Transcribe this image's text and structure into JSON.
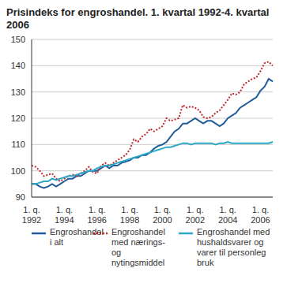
{
  "chart_data": {
    "type": "line",
    "title": "Prisindeks for engroshandel. 1. kvartal 1992-4. kvartal 2006",
    "categories": [
      "1. q. 1992",
      null,
      null,
      null,
      null,
      null,
      null,
      null,
      "1. q. 1994",
      null,
      null,
      null,
      null,
      null,
      null,
      null,
      "1. q. 1996",
      null,
      null,
      null,
      null,
      null,
      null,
      null,
      "1. q. 1998",
      null,
      null,
      null,
      null,
      null,
      null,
      null,
      "1. q. 2000",
      null,
      null,
      null,
      null,
      null,
      null,
      null,
      "1. q. 2002",
      null,
      null,
      null,
      null,
      null,
      null,
      null,
      "1. q. 2004",
      null,
      null,
      null,
      null,
      null,
      null,
      null,
      "1. q. 2006",
      null,
      null,
      null
    ],
    "series": [
      {
        "name": "Engroshandel i alt",
        "color": "#1f5c99",
        "line_style": "solid",
        "values": [
          95,
          95,
          94,
          93.5,
          94,
          95,
          94,
          95,
          96,
          97,
          97,
          98,
          98,
          99,
          100,
          100,
          100,
          101,
          102,
          101,
          102,
          102,
          103,
          103.5,
          104,
          105,
          105,
          106,
          106,
          107,
          108.5,
          109.5,
          110,
          111,
          113,
          115,
          116,
          118,
          118,
          119,
          120,
          119,
          118,
          119,
          119,
          118,
          117,
          118,
          120,
          121,
          122,
          124,
          125,
          126,
          127,
          128,
          130.5,
          132,
          135,
          134
        ]
      },
      {
        "name": "Engroshandel med nærings- og nytingsmiddel",
        "color": "#c0282d",
        "line_style": "dotted",
        "values": [
          102,
          101.5,
          100,
          98,
          98.5,
          99,
          97,
          96,
          97,
          98,
          98.5,
          98,
          99,
          100,
          101.5,
          99.5,
          99,
          102,
          103,
          102,
          103,
          104,
          105,
          106,
          108,
          112,
          111,
          113,
          114,
          116,
          115,
          116,
          117,
          120,
          119,
          119.5,
          120,
          125,
          124,
          124.5,
          124,
          123,
          120.5,
          120,
          120.5,
          122,
          123,
          125,
          127,
          129.5,
          129,
          130,
          133,
          134,
          135,
          135.5,
          138,
          141,
          141.5,
          140
        ]
      },
      {
        "name": "Engroshandel med hushaldsvarer og varer til personleg bruk",
        "color": "#2aa8c4",
        "line_style": "solid",
        "values": [
          95,
          95,
          95.5,
          96,
          96,
          97,
          96.5,
          97,
          97.5,
          98,
          98,
          98.5,
          99,
          99.5,
          100,
          100,
          101,
          101.5,
          102,
          102,
          102.5,
          103,
          103.5,
          104,
          104.5,
          105,
          105.5,
          106,
          106.5,
          107,
          107.5,
          108,
          108.5,
          109,
          109,
          109.5,
          110,
          110.5,
          110.5,
          110,
          110.5,
          110.5,
          110.5,
          110.5,
          110.5,
          110,
          110.5,
          110.5,
          111,
          110.5,
          110.5,
          110.5,
          110.5,
          110.5,
          110.5,
          110.5,
          110.5,
          110.5,
          110.5,
          111
        ]
      }
    ],
    "ylim": [
      90,
      150
    ],
    "yticks": [
      90,
      100,
      110,
      120,
      130,
      140,
      150
    ],
    "grid": true,
    "legend": "bottom"
  }
}
